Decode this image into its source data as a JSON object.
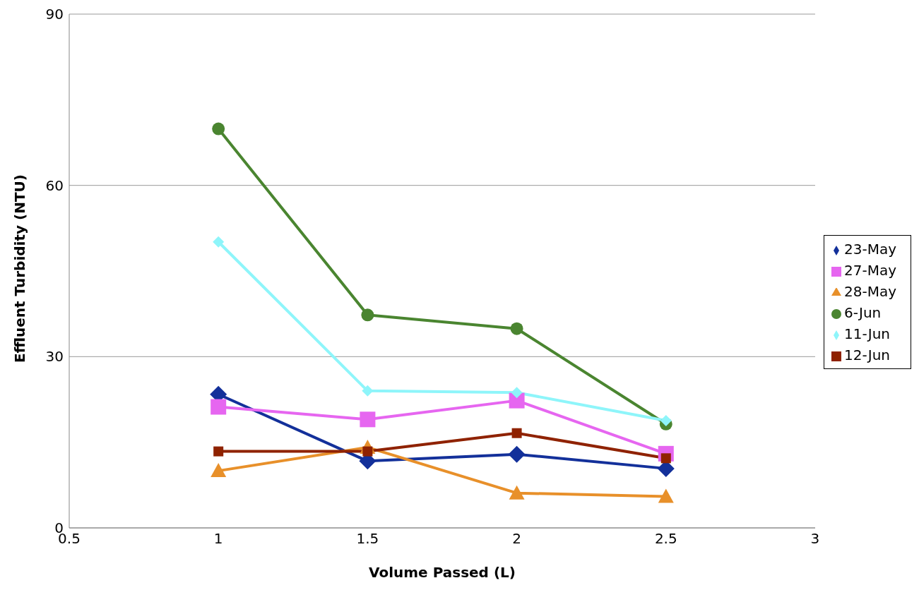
{
  "chart_data": {
    "type": "line",
    "xlabel": "Volume Passed (L)",
    "ylabel": "Effluent Turbidity (NTU)",
    "x": [
      1,
      1.5,
      2,
      2.5
    ],
    "xlim": [
      0.5,
      3
    ],
    "xticks": [
      0.5,
      1,
      1.5,
      2,
      2.5,
      3
    ],
    "ylim": [
      0,
      90
    ],
    "yticks": [
      0,
      30,
      60,
      90
    ],
    "grid": "y",
    "legend": "right",
    "line_style": "solid",
    "series": [
      {
        "name": "23-May",
        "color": "#13309a",
        "marker": "diamond",
        "values": [
          23.4,
          11.7,
          12.9,
          10.4
        ]
      },
      {
        "name": "27-May",
        "color": "#e666f0",
        "marker": "square",
        "values": [
          21.2,
          19.0,
          22.3,
          13.0
        ]
      },
      {
        "name": "28-May",
        "color": "#e8902a",
        "marker": "triangle",
        "values": [
          10.0,
          14.1,
          6.1,
          5.5
        ]
      },
      {
        "name": "6-Jun",
        "color": "#4a8530",
        "marker": "circle",
        "values": [
          69.9,
          37.3,
          34.9,
          18.2
        ]
      },
      {
        "name": "11-Jun",
        "color": "#8ef5fa",
        "marker": "diamond",
        "values": [
          50.1,
          24.0,
          23.7,
          18.8
        ]
      },
      {
        "name": "12-Jun",
        "color": "#8f2200",
        "marker": "square",
        "values": [
          13.4,
          13.4,
          16.6,
          12.2
        ]
      }
    ]
  }
}
